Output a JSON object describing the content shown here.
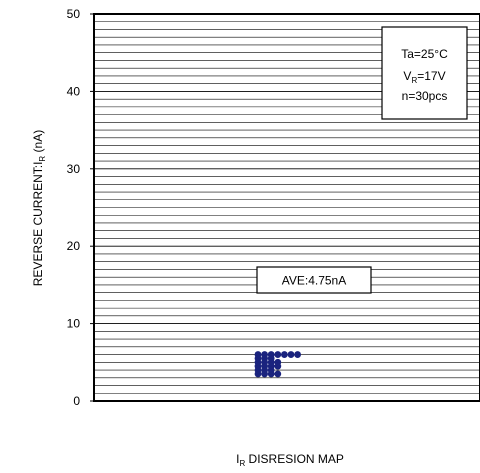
{
  "chart_data": {
    "type": "scatter",
    "title": "",
    "xlabel": {
      "main": "I",
      "sub": "R",
      "rest": " DISRESION MAP"
    },
    "ylabel": {
      "main": "REVERSE CURRENT:I",
      "sub": "R",
      "rest": " (nA)"
    },
    "ylim": [
      0,
      50
    ],
    "yticks": [
      "0",
      "10",
      "20",
      "30",
      "40",
      "50"
    ],
    "grid": "horizontal, fine",
    "marker_color": "#1a237e",
    "points": [
      {
        "x": 0,
        "y": 6.0
      },
      {
        "x": 0,
        "y": 5.5
      },
      {
        "x": 0,
        "y": 5.0
      },
      {
        "x": 0,
        "y": 4.5
      },
      {
        "x": 0,
        "y": 4.0
      },
      {
        "x": 0,
        "y": 3.5
      },
      {
        "x": 1,
        "y": 6.0
      },
      {
        "x": 1,
        "y": 5.5
      },
      {
        "x": 1,
        "y": 5.0
      },
      {
        "x": 1,
        "y": 4.5
      },
      {
        "x": 1,
        "y": 4.0
      },
      {
        "x": 1,
        "y": 3.5
      },
      {
        "x": 2,
        "y": 6.0
      },
      {
        "x": 2,
        "y": 5.5
      },
      {
        "x": 2,
        "y": 5.0
      },
      {
        "x": 2,
        "y": 4.5
      },
      {
        "x": 2,
        "y": 4.0
      },
      {
        "x": 2,
        "y": 3.5
      },
      {
        "x": 3,
        "y": 6.0
      },
      {
        "x": 3,
        "y": 5.0
      },
      {
        "x": 3,
        "y": 4.5
      },
      {
        "x": 3,
        "y": 3.5
      },
      {
        "x": 4,
        "y": 6.0
      },
      {
        "x": 5,
        "y": 6.0
      },
      {
        "x": 6,
        "y": 6.0
      }
    ],
    "conditions": {
      "line1": "Ta=25°C",
      "line2": {
        "main": "V",
        "sub": "R",
        "rest": "=17V"
      },
      "line3": "n=30pcs"
    },
    "average_label": "AVE:4.75nA"
  }
}
